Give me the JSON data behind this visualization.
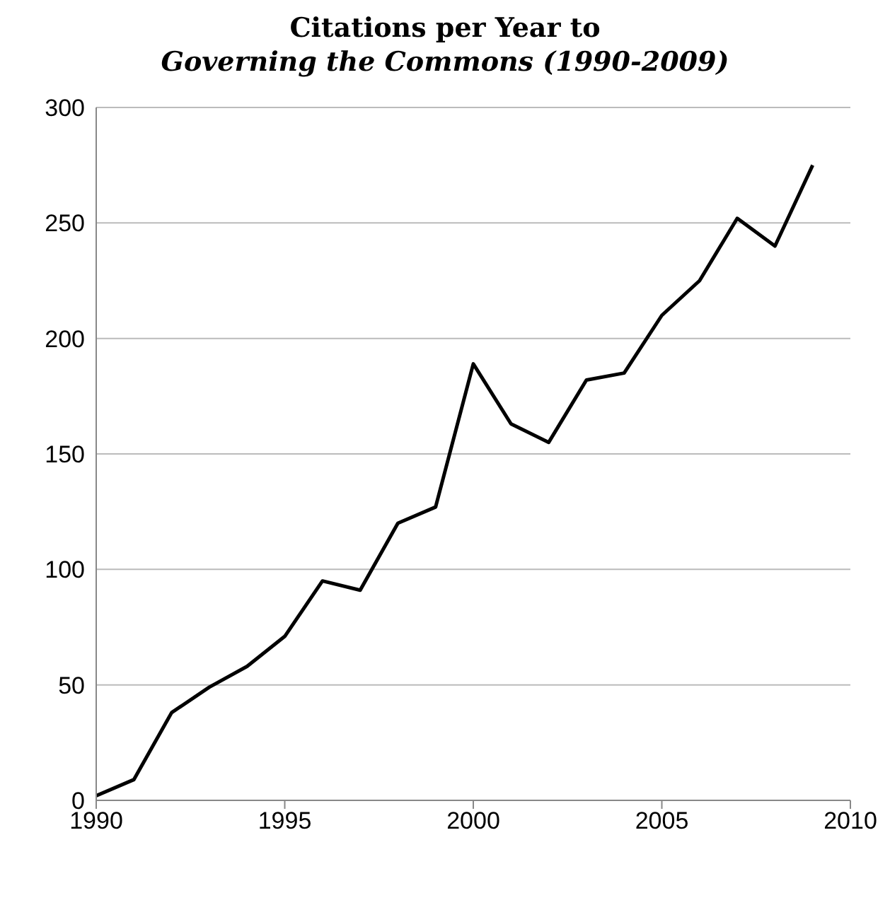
{
  "chart_data": {
    "type": "line",
    "title": "Citations per Year to",
    "subtitle": "Governing the Commons (1990-2009)",
    "x": [
      1990,
      1991,
      1992,
      1993,
      1994,
      1995,
      1996,
      1997,
      1998,
      1999,
      2000,
      2001,
      2002,
      2003,
      2004,
      2005,
      2006,
      2007,
      2008,
      2009
    ],
    "series": [
      {
        "color": "#000000",
        "values": [
          2,
          9,
          38,
          49,
          58,
          71,
          95,
          91,
          120,
          127,
          189,
          163,
          155,
          182,
          185,
          210,
          225,
          252,
          240,
          275
        ]
      }
    ],
    "xlim": [
      1990,
      2010
    ],
    "xticks": [
      1990,
      1995,
      2000,
      2005,
      2010
    ],
    "ylim": [
      0,
      300
    ],
    "yticks": [
      0,
      50,
      100,
      150,
      200,
      250,
      300
    ],
    "grid": "y",
    "legend": false
  }
}
